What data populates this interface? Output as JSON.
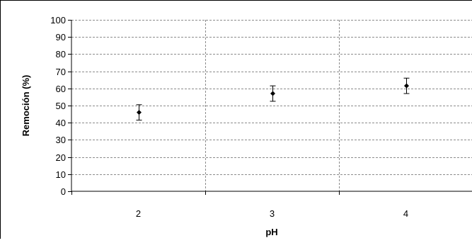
{
  "chart_data": {
    "type": "scatter",
    "title": "",
    "xlabel": "pH",
    "ylabel": "Remoción (%)",
    "categories": [
      "2",
      "3",
      "4"
    ],
    "x": [
      2,
      3,
      4
    ],
    "series": [
      {
        "values": [
          46,
          57,
          61.5
        ],
        "error_low": [
          41.5,
          52.5,
          57
        ],
        "error_high": [
          50.5,
          61.5,
          66
        ],
        "marker": "diamond",
        "color": "#000000"
      }
    ],
    "xlim": [
      1.5,
      4.5
    ],
    "ylim": [
      0,
      100
    ],
    "y_ticks": [
      "0",
      "10",
      "20",
      "30",
      "40",
      "50",
      "60",
      "70",
      "80",
      "90",
      "100"
    ],
    "grid": {
      "horizontal": "dashed",
      "vertical": "dashed"
    },
    "legend": "none"
  }
}
